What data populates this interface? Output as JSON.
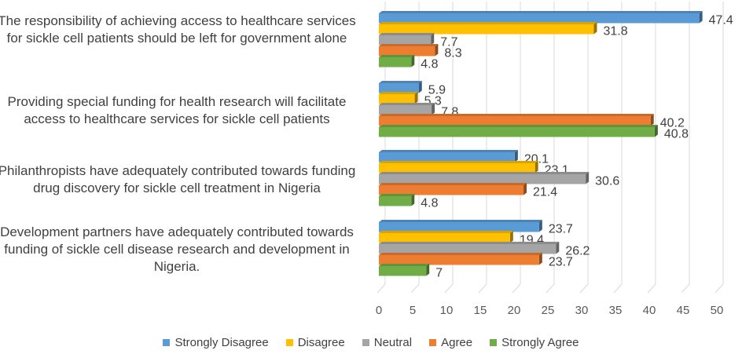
{
  "chart_data": {
    "type": "bar",
    "orientation": "horizontal",
    "categories": [
      "The responsibility of achieving access to healthcare services for sickle cell patients should be left for government alone",
      "Providing special funding for health research will facilitate access to healthcare services for sickle cell patients",
      "Philanthropists have adequately contributed towards funding drug discovery for sickle cell treatment in Nigeria",
      "Development partners have adequately contributed towards funding of sickle cell disease research and development in Nigeria."
    ],
    "series": [
      {
        "name": "Strongly Disagree",
        "color": "#5B9BD5",
        "values": [
          47.4,
          5.9,
          20.1,
          23.7
        ],
        "labels": [
          "47.4",
          "5.9",
          "20.1",
          "23.7"
        ]
      },
      {
        "name": "Disagree",
        "color": "#FFC000",
        "values": [
          31.8,
          5.3,
          23.1,
          19.4
        ],
        "labels": [
          "31.8",
          "5.3",
          "23.1",
          "19.4"
        ]
      },
      {
        "name": "Neutral",
        "color": "#A5A5A5",
        "values": [
          7.7,
          7.8,
          30.6,
          26.2
        ],
        "labels": [
          "7.7",
          "7.8",
          "30.6",
          "26.2"
        ]
      },
      {
        "name": "Agree",
        "color": "#ED7D31",
        "values": [
          8.3,
          40.2,
          21.4,
          23.7
        ],
        "labels": [
          "8.3",
          "40.2",
          "21.4",
          "23.7"
        ]
      },
      {
        "name": "Strongly Agree",
        "color": "#70AD47",
        "values": [
          4.8,
          40.8,
          4.8,
          7
        ],
        "labels": [
          "4.8",
          "40.8",
          "4.8",
          "7"
        ]
      }
    ],
    "xlim": [
      0,
      50
    ],
    "xticks": [
      "0",
      "5",
      "10",
      "15",
      "20",
      "25",
      "30",
      "35",
      "40",
      "45",
      "50"
    ],
    "grid": true,
    "legend_position": "bottom",
    "title": "",
    "xlabel": "",
    "ylabel": ""
  }
}
